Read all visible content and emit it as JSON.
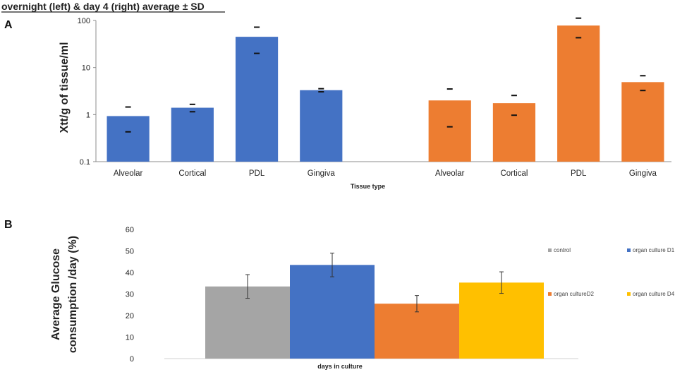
{
  "header": {
    "title": "overnight (left) & day 4 (right) average ± SD"
  },
  "chart_data": [
    {
      "panel": "A",
      "type": "bar",
      "scale": "log",
      "ylim": [
        0.1,
        100
      ],
      "yticks": [
        "0.1",
        "1",
        "10",
        "100"
      ],
      "xlabel": "Tissue type",
      "ylabel": "Xtt/g of tissue/ml",
      "groups": [
        "overnight",
        "day 4"
      ],
      "categories": [
        "Alveolar",
        "Cortical",
        "PDL",
        "Gingiva",
        "",
        "Alveolar",
        "Cortical",
        "PDL",
        "Gingiva"
      ],
      "values": [
        0.93,
        1.4,
        45,
        3.3,
        null,
        2.0,
        1.75,
        78,
        4.9
      ],
      "err_low": [
        0.43,
        1.15,
        20,
        3.05,
        null,
        0.55,
        0.97,
        43,
        3.25
      ],
      "err_high": [
        1.45,
        1.65,
        72,
        3.55,
        null,
        3.5,
        2.55,
        112,
        6.7
      ],
      "colors": [
        "#4472c4",
        "#4472c4",
        "#4472c4",
        "#4472c4",
        "",
        "#ed7d31",
        "#ed7d31",
        "#ed7d31",
        "#ed7d31"
      ],
      "grid": false
    },
    {
      "panel": "B",
      "type": "bar",
      "ylim": [
        0,
        60
      ],
      "yticks": [
        "0",
        "10",
        "20",
        "30",
        "40",
        "50",
        "60"
      ],
      "xlabel": "days in culture",
      "ylabel_lines": [
        "Average Glucose",
        "consumption /day (%)"
      ],
      "series": [
        {
          "name": "control",
          "value": 33.5,
          "err": 5.5,
          "color": "#a5a5a5"
        },
        {
          "name": "organ culture D1",
          "value": 43.5,
          "err": 5.5,
          "color": "#4472c4"
        },
        {
          "name": "organ cultureD2",
          "value": 25.5,
          "err": 3.8,
          "color": "#ed7d31"
        },
        {
          "name": "organ culture D4",
          "value": 35.3,
          "err": 5.0,
          "color": "#ffc000"
        }
      ],
      "legend": "right",
      "grid": false
    }
  ]
}
